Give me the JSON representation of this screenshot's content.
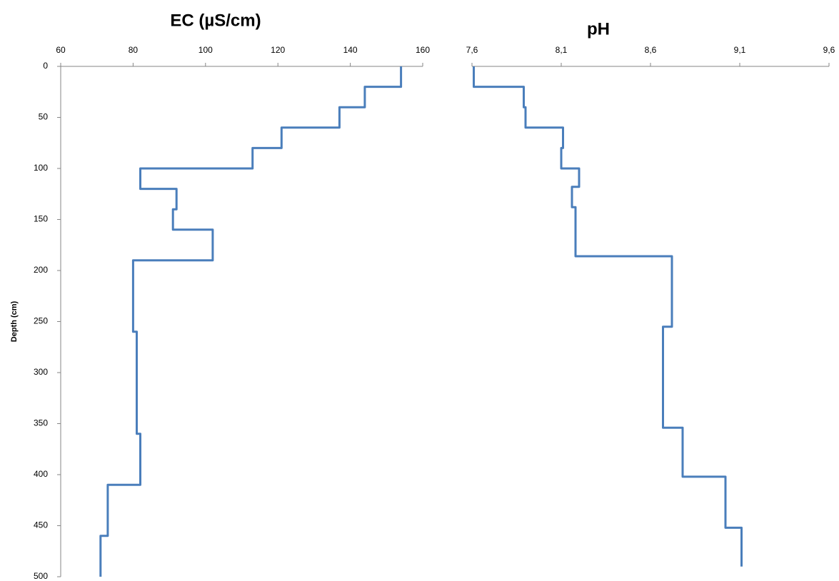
{
  "chart_data": [
    {
      "type": "line",
      "title": "EC (µS/cm)",
      "y_label": "Depth (cm)",
      "color": "#4a7ebb",
      "x": [
        154,
        154,
        144,
        144,
        137,
        137,
        121,
        121,
        113,
        113,
        82,
        82,
        92,
        92,
        91,
        91,
        102,
        102,
        80,
        80,
        81,
        81,
        82,
        82,
        73,
        73,
        71,
        71
      ],
      "values": [
        0,
        20,
        20,
        40,
        40,
        60,
        60,
        80,
        80,
        100,
        100,
        120,
        120,
        140,
        140,
        160,
        160,
        190,
        190,
        260,
        260,
        360,
        360,
        410,
        410,
        460,
        460,
        500
      ],
      "xlim": [
        60,
        160
      ],
      "xticks": [
        60,
        80,
        100,
        120,
        140,
        160
      ],
      "ylim": [
        0,
        500
      ],
      "y_reversed": true,
      "yticks": [
        0,
        50,
        100,
        150,
        200,
        250,
        300,
        350,
        400,
        450,
        500
      ]
    },
    {
      "type": "line",
      "title": "pH",
      "color": "#4a7ebb",
      "x": [
        7.61,
        7.61,
        7.89,
        7.89,
        7.9,
        7.9,
        8.11,
        8.11,
        8.1,
        8.1,
        8.2,
        8.2,
        8.16,
        8.16,
        8.18,
        8.18,
        8.72,
        8.72,
        8.67,
        8.67,
        8.78,
        8.78,
        9.02,
        9.02,
        9.11,
        9.11
      ],
      "values": [
        0,
        20,
        20,
        40,
        40,
        60,
        60,
        80,
        80,
        100,
        100,
        118,
        118,
        138,
        138,
        186,
        186,
        255,
        255,
        354,
        354,
        402,
        402,
        452,
        452,
        490
      ],
      "xlim": [
        7.6,
        9.6
      ],
      "xticks": [
        {
          "value": 7.6,
          "label": "7,6"
        },
        {
          "value": 8.1,
          "label": "8,1"
        },
        {
          "value": 8.6,
          "label": "8,6"
        },
        {
          "value": 9.1,
          "label": "9,1"
        },
        {
          "value": 9.6,
          "label": "9,6"
        }
      ],
      "ylim": [
        0,
        500
      ],
      "y_reversed": true
    }
  ]
}
